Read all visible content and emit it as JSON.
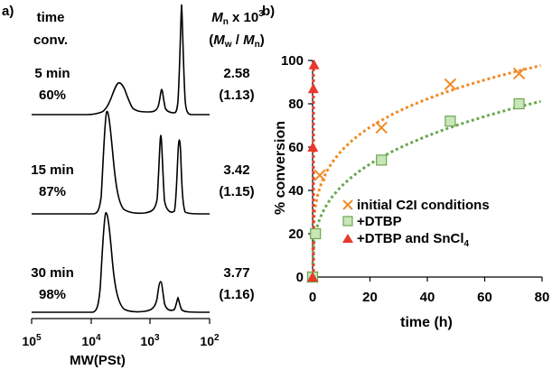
{
  "panel_a": {
    "label": "a)",
    "header_left": [
      "time",
      "conv."
    ],
    "header_right_title": "M",
    "header_right_sub": "n",
    "header_right_suffix": " x 10",
    "header_right_sup": "3",
    "header_right_line2": {
      "open": "(",
      "a": "M",
      "a_sub": "w",
      "sep": " / ",
      "b": "M",
      "b_sub": "n",
      "close": ")"
    },
    "traces": [
      {
        "time": "5 min",
        "conv": "60%",
        "mn": "2.58",
        "dispersity": "(1.13)"
      },
      {
        "time": "15 min",
        "conv": "87%",
        "mn": "3.42",
        "dispersity": "(1.15)"
      },
      {
        "time": "30 min",
        "conv": "98%",
        "mn": "3.77",
        "dispersity": "(1.16)"
      }
    ],
    "x_axis": {
      "ticks": [
        {
          "base": "10",
          "exp": "5"
        },
        {
          "base": "10",
          "exp": "4"
        },
        {
          "base": "10",
          "exp": "3"
        },
        {
          "base": "10",
          "exp": "2"
        }
      ],
      "label": "MW(PSt)"
    }
  },
  "chart_data": {
    "type": "scatter",
    "panel_label": "b)",
    "xlabel": "time (h)",
    "ylabel": "% conversion",
    "xlim": [
      0,
      80
    ],
    "ylim": [
      0,
      100
    ],
    "xticks": [
      "0",
      "20",
      "40",
      "60",
      "80"
    ],
    "yticks": [
      "0",
      "20",
      "40",
      "60",
      "80",
      "100"
    ],
    "legend_position": "bottom-right",
    "colors": {
      "orange": "#f08a24",
      "green": "#6aa84f",
      "green_fill": "#c9e6b8",
      "red": "#e8392b"
    },
    "series": [
      {
        "name": "initial C2I conditions",
        "marker": "x",
        "color": "#f08a24",
        "x": [
          0,
          2.5,
          24,
          48,
          72
        ],
        "y": [
          0,
          47,
          69,
          89,
          94
        ]
      },
      {
        "name": "+DTBP",
        "marker": "square",
        "color": "#6aa84f",
        "x": [
          0,
          1,
          24,
          48,
          72
        ],
        "y": [
          0,
          20,
          54,
          72,
          80
        ]
      },
      {
        "name": "+DTBP and SnCl",
        "name_sub": "4",
        "marker": "triangle",
        "color": "#e8392b",
        "x": [
          0,
          0.083,
          0.25,
          0.5
        ],
        "y": [
          0,
          60,
          87,
          98
        ]
      }
    ]
  }
}
